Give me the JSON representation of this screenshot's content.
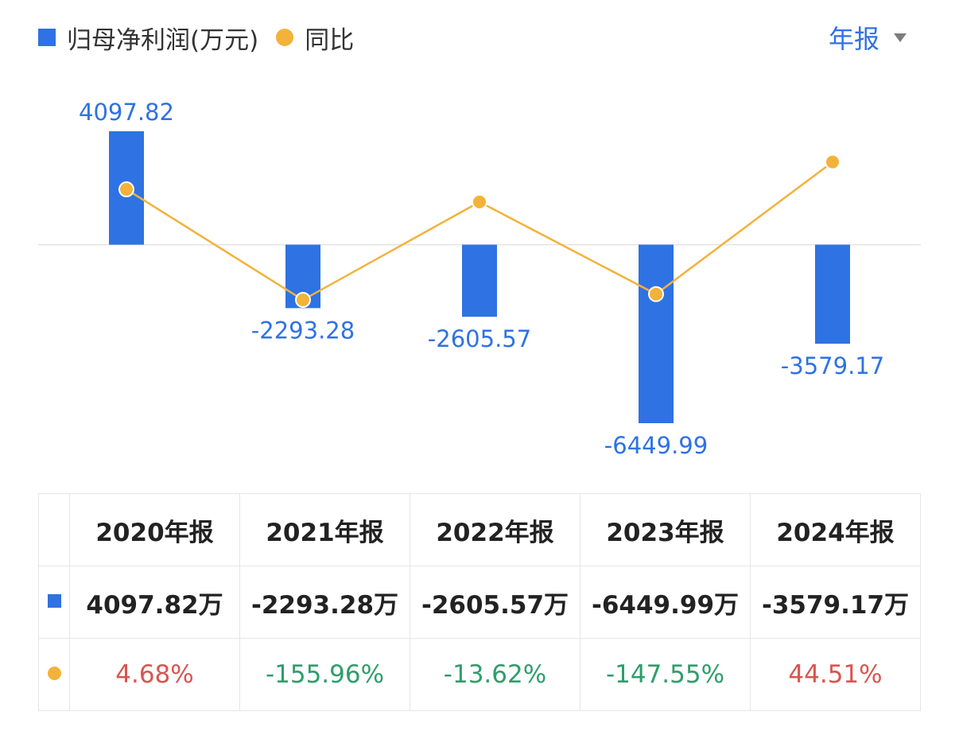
{
  "legend": {
    "bar_label": "归母净利润(万元)",
    "line_label": "同比"
  },
  "period_selector": {
    "label": "年报"
  },
  "colors": {
    "bar": "#2f72e3",
    "line": "#f3b23a",
    "positive_pct": "#d95550",
    "negative_pct": "#2e9e6b"
  },
  "chart_data": {
    "type": "bar",
    "categories": [
      "2020年报",
      "2021年报",
      "2022年报",
      "2023年报",
      "2024年报"
    ],
    "series": [
      {
        "name": "归母净利润(万元)",
        "type": "bar",
        "values": [
          4097.82,
          -2293.28,
          -2605.57,
          -6449.99,
          -3579.17
        ],
        "labels": [
          "4097.82",
          "-2293.28",
          "-2605.57",
          "-6449.99",
          "-3579.17"
        ]
      },
      {
        "name": "同比",
        "type": "line",
        "values": [
          4.68,
          -155.96,
          -13.62,
          -147.55,
          44.51
        ]
      }
    ],
    "bar_ylim": [
      -6449.99,
      4097.82
    ],
    "line_ylim": [
      -155.96,
      118.0
    ],
    "grid": false,
    "legend_position": "top-left"
  },
  "table": {
    "header": [
      "2020年报",
      "2021年报",
      "2022年报",
      "2023年报",
      "2024年报"
    ],
    "profit": [
      "4097.82万",
      "-2293.28万",
      "-2605.57万",
      "-6449.99万",
      "-3579.17万"
    ],
    "yoy": [
      "4.68%",
      "-155.96%",
      "-13.62%",
      "-147.55%",
      "44.51%"
    ]
  }
}
